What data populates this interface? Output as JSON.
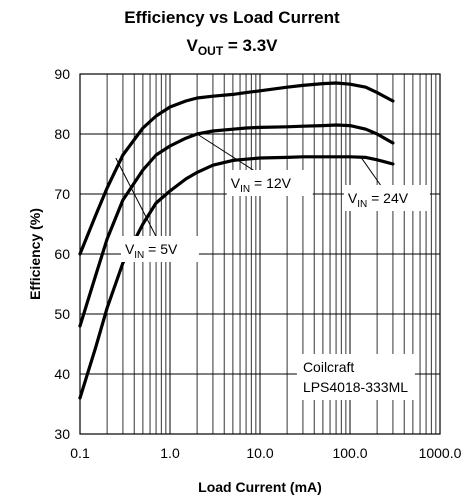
{
  "chart_data": {
    "type": "line",
    "title": "Efficiency vs Load Current",
    "subtitle": {
      "main": "V",
      "sub": "OUT",
      "rest": " = 3.3V"
    },
    "xlabel": "Load Current (mA)",
    "ylabel": "Efficiency (%)",
    "x_scale": "log",
    "xlim": [
      0.1,
      1000
    ],
    "ylim": [
      30,
      90
    ],
    "x_ticks": [
      0.1,
      1,
      10,
      100,
      1000
    ],
    "x_tick_labels": [
      "0.1",
      "1.0",
      "10.0",
      "100.0",
      "1000.0"
    ],
    "y_ticks": [
      30,
      40,
      50,
      60,
      70,
      80,
      90
    ],
    "y_tick_labels": [
      "30",
      "40",
      "50",
      "60",
      "70",
      "80",
      "90"
    ],
    "grid": true,
    "series": [
      {
        "name": {
          "main": "V",
          "sub": "IN",
          "rest": " = 5V"
        },
        "x": [
          0.1,
          0.15,
          0.2,
          0.3,
          0.5,
          0.7,
          1,
          1.5,
          2,
          3,
          5,
          7,
          10,
          20,
          30,
          50,
          70,
          100,
          150,
          200,
          300
        ],
        "y": [
          60,
          66.5,
          71,
          76.5,
          81,
          83,
          84.5,
          85.5,
          86,
          86.3,
          86.6,
          86.9,
          87.2,
          87.8,
          88.1,
          88.4,
          88.5,
          88.3,
          87.8,
          86.9,
          85.5
        ]
      },
      {
        "name": {
          "main": "V",
          "sub": "IN",
          "rest": " = 12V"
        },
        "x": [
          0.1,
          0.15,
          0.2,
          0.3,
          0.5,
          0.7,
          1,
          1.5,
          2,
          3,
          5,
          7,
          10,
          20,
          30,
          50,
          70,
          100,
          150,
          200,
          300
        ],
        "y": [
          48,
          56.5,
          62.5,
          69,
          74,
          76.5,
          78,
          79.3,
          80,
          80.5,
          80.8,
          81,
          81.1,
          81.2,
          81.3,
          81.4,
          81.5,
          81.4,
          80.8,
          80,
          78.5
        ]
      },
      {
        "name": {
          "main": "V",
          "sub": "IN",
          "rest": " = 24V"
        },
        "x": [
          0.1,
          0.15,
          0.2,
          0.3,
          0.5,
          0.7,
          1,
          1.5,
          2,
          3,
          5,
          7,
          10,
          20,
          30,
          50,
          70,
          100,
          150,
          200,
          300
        ],
        "y": [
          36,
          44.5,
          51,
          58.5,
          65,
          68.5,
          70.5,
          72.5,
          73.6,
          74.8,
          75.6,
          75.8,
          76,
          76.1,
          76.2,
          76.2,
          76.2,
          76.2,
          76.1,
          75.7,
          75
        ]
      }
    ],
    "annotations": [
      {
        "kind": "label",
        "series": 0,
        "text": {
          "main": "V",
          "sub": "IN",
          "rest": " = 5V"
        },
        "label_at": {
          "x": 0.3,
          "y": 60
        },
        "pointer_to": {
          "x": 0.25,
          "y": 76
        }
      },
      {
        "kind": "label",
        "series": 1,
        "text": {
          "main": "V",
          "sub": "IN",
          "rest": " = 12V"
        },
        "label_at": {
          "x": 4.5,
          "y": 71
        },
        "pointer_to": {
          "x": 2,
          "y": 80
        }
      },
      {
        "kind": "label",
        "series": 2,
        "text": {
          "main": "V",
          "sub": "IN",
          "rest": " = 24V"
        },
        "label_at": {
          "x": 90,
          "y": 68.5
        },
        "pointer_to": {
          "x": 130,
          "y": 76.3
        }
      },
      {
        "kind": "note",
        "lines": [
          "Coilcraft",
          "LPS4018-333ML"
        ],
        "label_at": {
          "x": 30,
          "y": 40
        }
      }
    ]
  }
}
